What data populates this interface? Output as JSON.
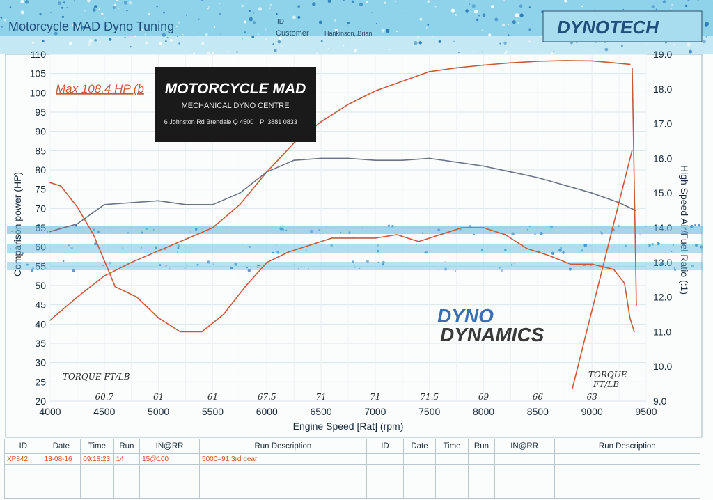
{
  "header": {
    "title": "Motorcycle MAD Dyno Tuning",
    "id_label": "ID",
    "customer_label": "Customer",
    "customer_name": "Hankinson, Brian",
    "brand": "DYNOTECH"
  },
  "annotation_max": "Max 108.4 HP (b",
  "dealer_logo": {
    "name": "MOTORCYCLE MAD",
    "line1": "MECHANICAL   DYNO CENTRE",
    "line2": "6 Johnston Rd Brendale Q 4500",
    "line3": "P: 3881 0833"
  },
  "dyno_logo": {
    "line1": "DYNO",
    "line2": "DYNAMICS"
  },
  "handwritten": {
    "left_label": "TORQUE FT/LB",
    "right_label_1": "TORQUE",
    "right_label_2": "FT/LB",
    "torque_readings": [
      "60.7",
      "61",
      "61",
      "67.5",
      "71",
      "71",
      "71.5",
      "69",
      "66",
      "63"
    ]
  },
  "chart_data": {
    "type": "line",
    "title": "",
    "xlabel": "Engine Speed [Rat] (rpm)",
    "ylabel": "Comparison power (HP)",
    "y2label": "High Speed Air/Fuel Ratio (:1)",
    "xlim": [
      4000,
      9500
    ],
    "ylim": [
      20,
      110
    ],
    "y2lim": [
      9.0,
      19.0
    ],
    "x_ticks": [
      4000,
      4500,
      5000,
      5500,
      6000,
      6500,
      7000,
      7500,
      8000,
      8500,
      9000,
      9500
    ],
    "y_ticks": [
      20,
      25,
      30,
      35,
      40,
      45,
      50,
      55,
      60,
      65,
      70,
      75,
      80,
      85,
      90,
      95,
      100,
      105,
      110
    ],
    "y2_ticks": [
      "9.0",
      "10.0",
      "11.0",
      "12.0",
      "13.0",
      "14.0",
      "15.0",
      "16.0",
      "17.0",
      "18.0",
      "19.0"
    ],
    "grid": true,
    "series": [
      {
        "name": "",
        "color": "#c85a3a",
        "axis": "left",
        "x": [
          4000,
          4250,
          4500,
          4750,
          5000,
          5250,
          5500,
          5750,
          6000,
          6250,
          6500,
          6750,
          7000,
          7250,
          7500,
          7750,
          8000,
          8250,
          8500,
          8750,
          9000,
          9200,
          9350
        ],
        "y": [
          41,
          47,
          52.5,
          56,
          59,
          62,
          65,
          71,
          79.5,
          87,
          92.5,
          97,
          100.5,
          103,
          105.5,
          106.5,
          107.2,
          107.8,
          108.2,
          108.4,
          108.3,
          107.8,
          107.4
        ]
      },
      {
        "name": "",
        "color": "#6b7286",
        "axis": "left",
        "x": [
          4000,
          4250,
          4500,
          4750,
          5000,
          5250,
          5500,
          5750,
          6000,
          6250,
          6500,
          6750,
          7000,
          7250,
          7500,
          7750,
          8000,
          8250,
          8500,
          8750,
          9000,
          9250,
          9400
        ],
        "y": [
          64,
          66,
          71,
          71.5,
          72,
          71,
          71,
          74,
          79.5,
          82.5,
          83,
          83,
          82.5,
          82.5,
          83,
          82,
          81,
          79.5,
          78,
          76,
          74,
          71.5,
          69.5
        ]
      },
      {
        "name": "",
        "color": "#c85a3a",
        "axis": "right",
        "x": [
          4000,
          4100,
          4250,
          4400,
          4600,
          4800,
          5000,
          5200,
          5400,
          5600,
          5800,
          6000,
          6200,
          6400,
          6600,
          6800,
          7000,
          7200,
          7400,
          7600,
          7800,
          8000,
          8200,
          8400,
          8600,
          8800,
          9000,
          9200,
          9300,
          9350,
          9390
        ],
        "y": [
          15.3,
          15.2,
          14.6,
          13.8,
          12.3,
          12.0,
          11.4,
          11.0,
          11.0,
          11.5,
          12.3,
          13.0,
          13.3,
          13.5,
          13.7,
          13.7,
          13.7,
          13.8,
          13.6,
          13.8,
          14.0,
          14.0,
          13.8,
          13.4,
          13.2,
          12.95,
          12.95,
          12.8,
          12.4,
          11.4,
          11.0
        ]
      }
    ]
  },
  "table": {
    "headers": [
      "ID",
      "Date",
      "Time",
      "Run",
      "IN@RR",
      "Run Description",
      "ID",
      "Date",
      "Time",
      "Run",
      "IN@RR",
      "Run Description"
    ],
    "rows": [
      [
        "XP842",
        "13-08-16",
        "09:18:23",
        "14",
        "15@100",
        "5000=91  3rd gear",
        "",
        "",
        "",
        "",
        "",
        ""
      ]
    ]
  }
}
